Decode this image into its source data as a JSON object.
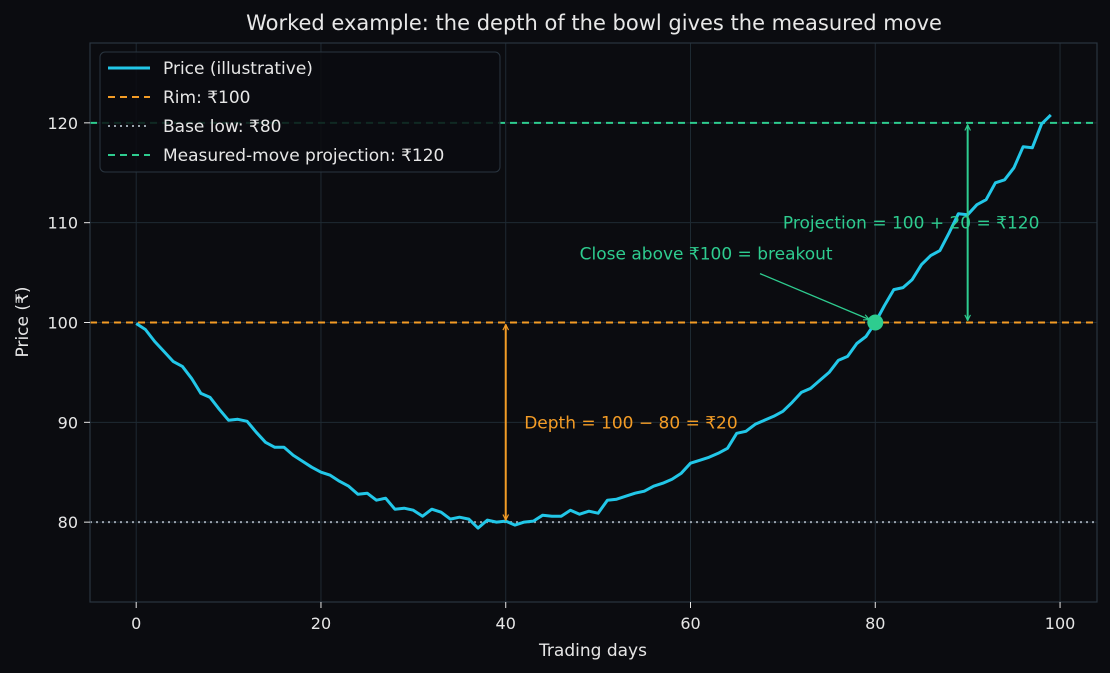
{
  "chart_data": {
    "type": "line",
    "title": "Worked example: the depth of the bowl gives the measured move",
    "xlabel": "Trading days",
    "ylabel": "Price (₹)",
    "xlim": [
      -5,
      104
    ],
    "ylim": [
      72,
      128
    ],
    "xticks": [
      0,
      20,
      40,
      60,
      80,
      100
    ],
    "yticks": [
      80,
      90,
      100,
      110,
      120
    ],
    "grid": true,
    "legend_position": "top-left",
    "colors": {
      "background": "#0b0c10",
      "axes_bg": "#0b0c10",
      "grid": "#1f2a33",
      "spine": "#2a3540",
      "price": "#22c7e8",
      "rim": "#f39c26",
      "base": "#9aa3ad",
      "projection": "#2ecc8f",
      "text": "#e6e6e6"
    },
    "series": [
      {
        "name": "Price (illustrative)",
        "x": [
          0,
          1,
          2,
          3,
          4,
          5,
          6,
          7,
          8,
          9,
          10,
          11,
          12,
          13,
          14,
          15,
          16,
          17,
          18,
          19,
          20,
          21,
          22,
          23,
          24,
          25,
          26,
          27,
          28,
          29,
          30,
          31,
          32,
          33,
          34,
          35,
          36,
          37,
          38,
          39,
          40,
          41,
          42,
          43,
          44,
          45,
          46,
          47,
          48,
          49,
          50,
          51,
          52,
          53,
          54,
          55,
          56,
          57,
          58,
          59,
          60,
          61,
          62,
          63,
          64,
          65,
          66,
          67,
          68,
          69,
          70,
          71,
          72,
          73,
          74,
          75,
          76,
          77,
          78,
          79,
          80,
          81,
          82,
          83,
          84,
          85,
          86,
          87,
          88,
          89,
          90,
          91,
          92,
          93,
          94,
          95,
          96,
          97,
          98,
          99
        ],
        "y": [
          99.9,
          99.3,
          98.1,
          97.1,
          96.1,
          95.6,
          94.4,
          92.9,
          92.5,
          91.3,
          90.2,
          90.3,
          90.1,
          89.0,
          88.0,
          87.5,
          87.5,
          86.7,
          86.1,
          85.5,
          85.0,
          84.7,
          84.1,
          83.6,
          82.8,
          82.9,
          82.2,
          82.4,
          81.3,
          81.4,
          81.2,
          80.6,
          81.3,
          81.0,
          80.3,
          80.5,
          80.3,
          79.4,
          80.2,
          80.0,
          80.1,
          79.7,
          80.0,
          80.1,
          80.7,
          80.6,
          80.6,
          81.2,
          80.8,
          81.1,
          80.9,
          82.2,
          82.3,
          82.6,
          82.9,
          83.1,
          83.6,
          83.9,
          84.3,
          84.9,
          85.9,
          86.2,
          86.5,
          86.9,
          87.4,
          88.9,
          89.1,
          89.8,
          90.2,
          90.6,
          91.1,
          92.0,
          93.0,
          93.4,
          94.2,
          95.0,
          96.2,
          96.6,
          97.9,
          98.6,
          100.0,
          101.7,
          103.3,
          103.5,
          104.3,
          105.8,
          106.7,
          107.2,
          109.0,
          110.9,
          110.8,
          111.8,
          112.3,
          114.0,
          114.3,
          115.5,
          117.6,
          117.5,
          119.9,
          120.8
        ]
      },
      {
        "name": "Rim: ₹100",
        "hline": 100,
        "style": "dashed"
      },
      {
        "name": "Base low: ₹80",
        "hline": 80,
        "style": "dotted"
      },
      {
        "name": "Measured-move projection: ₹120",
        "hline": 120,
        "style": "dashed"
      }
    ],
    "annotations": {
      "breakout": {
        "text": "Close above ₹100 = breakout",
        "point": [
          80,
          100
        ],
        "text_pos": [
          48,
          106.3
        ]
      },
      "depth": {
        "text": "Depth = 100 − 80 = ₹20",
        "arrow_x": 40,
        "from": 100,
        "to": 80,
        "text_pos": [
          42,
          90
        ]
      },
      "projection": {
        "text": "Projection = 100 + 20 = ₹120",
        "arrow_x": 90,
        "from": 100,
        "to": 120,
        "text_pos": [
          70,
          110
        ]
      }
    }
  }
}
